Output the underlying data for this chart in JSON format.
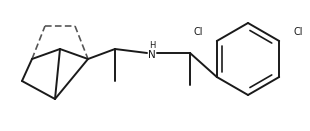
{
  "bg_color": "#ffffff",
  "line_color": "#1a1a1a",
  "text_color": "#1a1a1a",
  "lw": 1.4,
  "figsize": [
    3.1,
    1.31
  ],
  "dpi": 100,
  "xlim": [
    0.0,
    3.1
  ],
  "ylim": [
    0.0,
    1.31
  ]
}
